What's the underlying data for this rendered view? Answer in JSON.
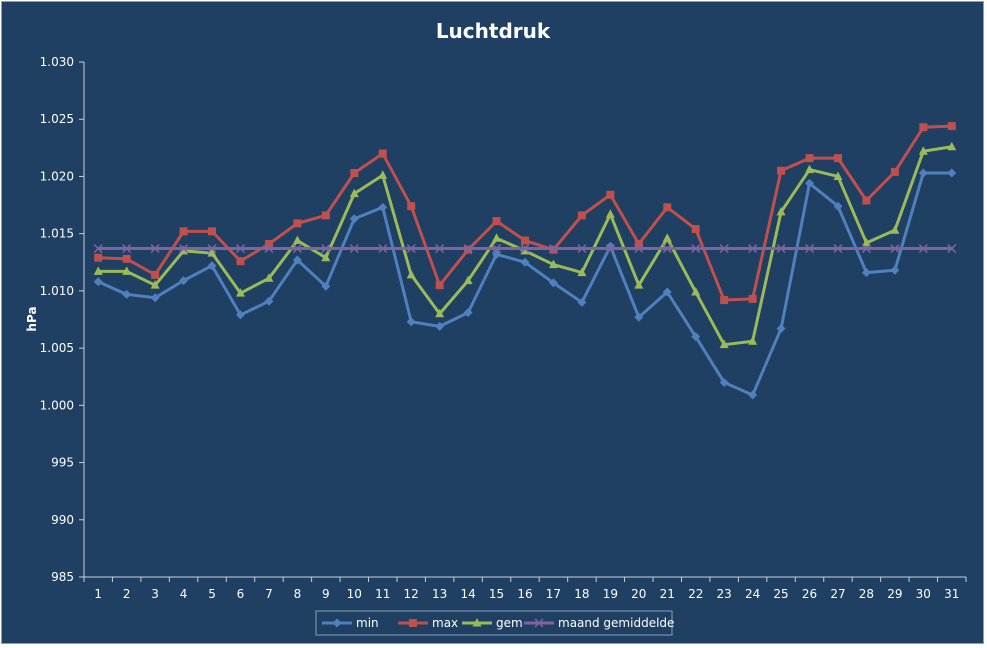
{
  "chart_data": {
    "type": "line",
    "title": "Luchtdruk",
    "xlabel": "",
    "ylabel": "hPa",
    "ylim": [
      985,
      1030
    ],
    "ytick_step": 5,
    "ytick_labels": [
      "985",
      "990",
      "995",
      "1.000",
      "1.005",
      "1.010",
      "1.015",
      "1.020",
      "1.025",
      "1.030"
    ],
    "grid": false,
    "legend_position": "bottom",
    "categories": [
      "1",
      "2",
      "3",
      "4",
      "5",
      "6",
      "7",
      "8",
      "9",
      "10",
      "11",
      "12",
      "13",
      "14",
      "15",
      "16",
      "17",
      "18",
      "19",
      "20",
      "21",
      "22",
      "23",
      "24",
      "25",
      "26",
      "27",
      "28",
      "29",
      "30",
      "31"
    ],
    "series": [
      {
        "name": "min",
        "color": "#4f81bd",
        "marker": "diamond",
        "values": [
          1010.8,
          1009.7,
          1009.4,
          1010.9,
          1012.2,
          1007.9,
          1009.1,
          1012.7,
          1010.4,
          1016.3,
          1017.3,
          1007.3,
          1006.9,
          1008.1,
          1013.2,
          1012.5,
          1010.7,
          1009.0,
          1013.9,
          1007.7,
          1009.9,
          1006.0,
          1002.0,
          1000.9,
          1006.7,
          1019.4,
          1017.4,
          1011.6,
          1011.8,
          1020.3,
          1020.3
        ]
      },
      {
        "name": "max",
        "color": "#c0504d",
        "marker": "square",
        "values": [
          1012.9,
          1012.8,
          1011.4,
          1015.2,
          1015.2,
          1012.6,
          1014.1,
          1015.9,
          1016.6,
          1020.3,
          1022.0,
          1017.4,
          1010.5,
          1013.6,
          1016.1,
          1014.4,
          1013.6,
          1016.6,
          1018.4,
          1014.1,
          1017.3,
          1015.4,
          1009.2,
          1009.3,
          1020.5,
          1021.6,
          1021.6,
          1017.9,
          1020.4,
          1024.3,
          1024.4
        ]
      },
      {
        "name": "gem",
        "color": "#9bbb59",
        "marker": "triangle",
        "values": [
          1011.7,
          1011.7,
          1010.5,
          1013.5,
          1013.3,
          1009.8,
          1011.1,
          1014.4,
          1012.9,
          1018.5,
          1020.1,
          1011.4,
          1008.0,
          1010.9,
          1014.6,
          1013.5,
          1012.3,
          1011.6,
          1016.7,
          1010.5,
          1014.6,
          1009.9,
          1005.3,
          1005.6,
          1016.9,
          1020.6,
          1020.0,
          1014.2,
          1015.3,
          1022.2,
          1022.6
        ]
      },
      {
        "name": "maand gemiddelde",
        "color": "#8064a2",
        "marker": "x",
        "values": [
          1013.7,
          1013.7,
          1013.7,
          1013.7,
          1013.7,
          1013.7,
          1013.7,
          1013.7,
          1013.7,
          1013.7,
          1013.7,
          1013.7,
          1013.7,
          1013.7,
          1013.7,
          1013.7,
          1013.7,
          1013.7,
          1013.7,
          1013.7,
          1013.7,
          1013.7,
          1013.7,
          1013.7,
          1013.7,
          1013.7,
          1013.7,
          1013.7,
          1013.7,
          1013.7,
          1013.7
        ]
      }
    ]
  }
}
